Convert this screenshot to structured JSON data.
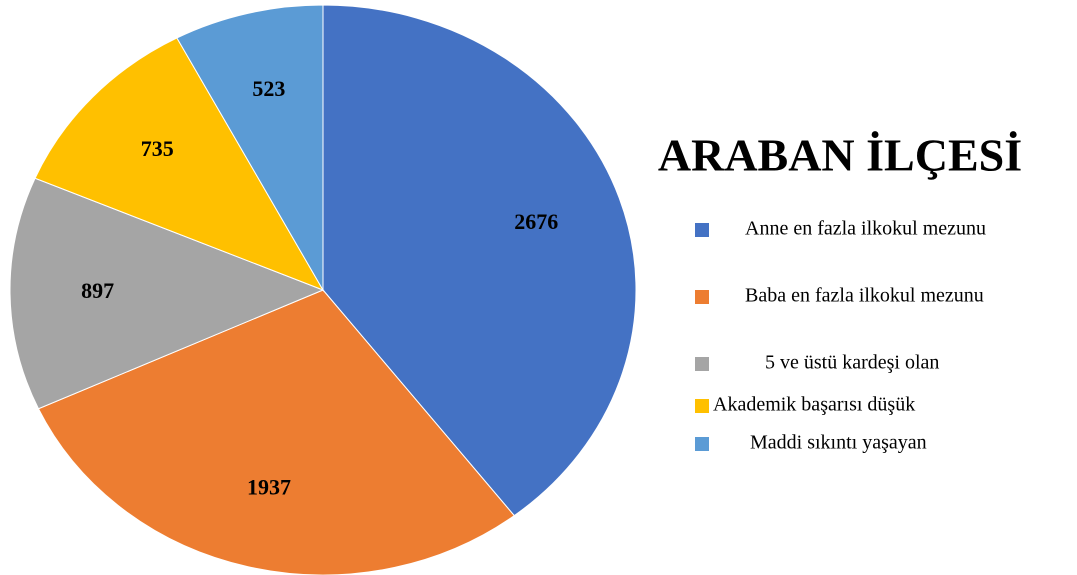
{
  "chart_data": {
    "type": "pie",
    "title": "ARABAN İLÇESİ",
    "categories": [
      "Anne en fazla ilkokul mezunu",
      "Baba en fazla ilkokul mezunu",
      "5 ve üstü kardeşi olan",
      "Akademik başarısı düşük",
      "Maddi sıkıntı yaşayan"
    ],
    "values": [
      2676,
      1937,
      897,
      735,
      523
    ],
    "colors": [
      "#4472c4",
      "#ed7d31",
      "#a5a5a5",
      "#ffc000",
      "#5b9bd5"
    ],
    "legend": "right"
  }
}
